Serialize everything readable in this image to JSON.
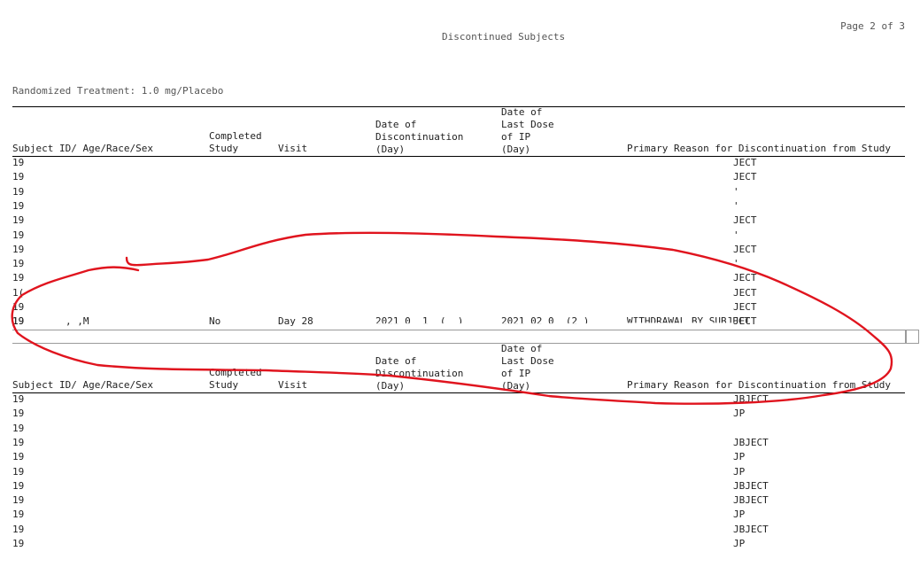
{
  "header": {
    "page": "Page 2 of 3",
    "title": "Discontinued Subjects",
    "treatment": "Randomized Treatment: 1.0 mg/Placebo"
  },
  "columns": {
    "subject": "Subject ID/ Age/Race/Sex",
    "completed_1": "Completed",
    "completed_2": "Study",
    "visit": "Visit",
    "disc_1": "Date of",
    "disc_2": "Discontinuation",
    "disc_3": "(Day)",
    "dose_1": "Date of",
    "dose_2": "Last Dose",
    "dose_3": "of IP",
    "dose_4": "(Day)",
    "reason": "Primary Reason for Discontinuation from Study"
  },
  "table1": {
    "rows": [
      {
        "id": "19",
        "reason": "JECT"
      },
      {
        "id": "19",
        "reason": "JECT"
      },
      {
        "id": "19",
        "reason": "'"
      },
      {
        "id": "19",
        "reason": "'"
      },
      {
        "id": "19",
        "reason": "JECT"
      },
      {
        "id": "19",
        "reason": "'"
      },
      {
        "id": "19",
        "reason": "JECT"
      },
      {
        "id": "19",
        "reason": "'"
      },
      {
        "id": "19",
        "reason": "JECT"
      },
      {
        "id": "1(",
        "reason": "JECT"
      },
      {
        "id": "19",
        "reason": "JECT"
      },
      {
        "id": "19",
        "reason": "JECT"
      }
    ],
    "last_row": {
      "id": "19",
      "sex": ", ,M",
      "completed": "No",
      "visit": "Day 28",
      "disc": "2021 0  1  (  )",
      "dose": "2021 02 0  (2 )",
      "reason": "WITHDRAWAL BY SUBJECT"
    }
  },
  "table2": {
    "rows": [
      {
        "id": "19",
        "reason": "JBJECT"
      },
      {
        "id": "19",
        "reason": "JP"
      },
      {
        "id": "19",
        "reason": ""
      },
      {
        "id": "19",
        "reason": "JBJECT"
      },
      {
        "id": "19",
        "reason": "JP"
      },
      {
        "id": "19",
        "reason": "JP"
      },
      {
        "id": "19",
        "reason": "JBJECT"
      },
      {
        "id": "19",
        "reason": "JBJECT"
      },
      {
        "id": "19",
        "reason": "JP"
      },
      {
        "id": "19",
        "reason": "JBJECT"
      },
      {
        "id": "19",
        "reason": "JP"
      }
    ]
  },
  "annotation_color": "#e0141e"
}
